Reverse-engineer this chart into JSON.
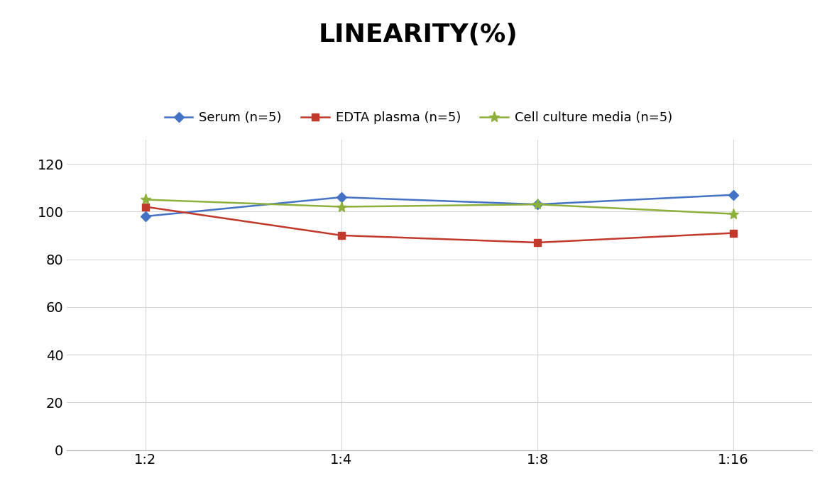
{
  "title": "LINEARITY(%)",
  "x_labels": [
    "1:2",
    "1:4",
    "1:8",
    "1:16"
  ],
  "x_positions": [
    0,
    1,
    2,
    3
  ],
  "series": [
    {
      "label": "Serum (n=5)",
      "values": [
        98,
        106,
        103,
        107
      ],
      "color": "#4472C4",
      "marker": "D",
      "marker_size": 7,
      "linewidth": 1.8
    },
    {
      "label": "EDTA plasma (n=5)",
      "values": [
        102,
        90,
        87,
        91
      ],
      "color": "#C0392B",
      "marker": "s",
      "marker_size": 7,
      "linewidth": 1.8
    },
    {
      "label": "Cell culture media (n=5)",
      "values": [
        105,
        102,
        103,
        99
      ],
      "color": "#8DB03A",
      "marker": "*",
      "marker_size": 11,
      "linewidth": 1.8
    }
  ],
  "ylim": [
    0,
    130
  ],
  "yticks": [
    0,
    20,
    40,
    60,
    80,
    100,
    120
  ],
  "background_color": "#ffffff",
  "title_fontsize": 26,
  "tick_fontsize": 14,
  "legend_fontsize": 13,
  "grid_color": "#d5d5d5"
}
